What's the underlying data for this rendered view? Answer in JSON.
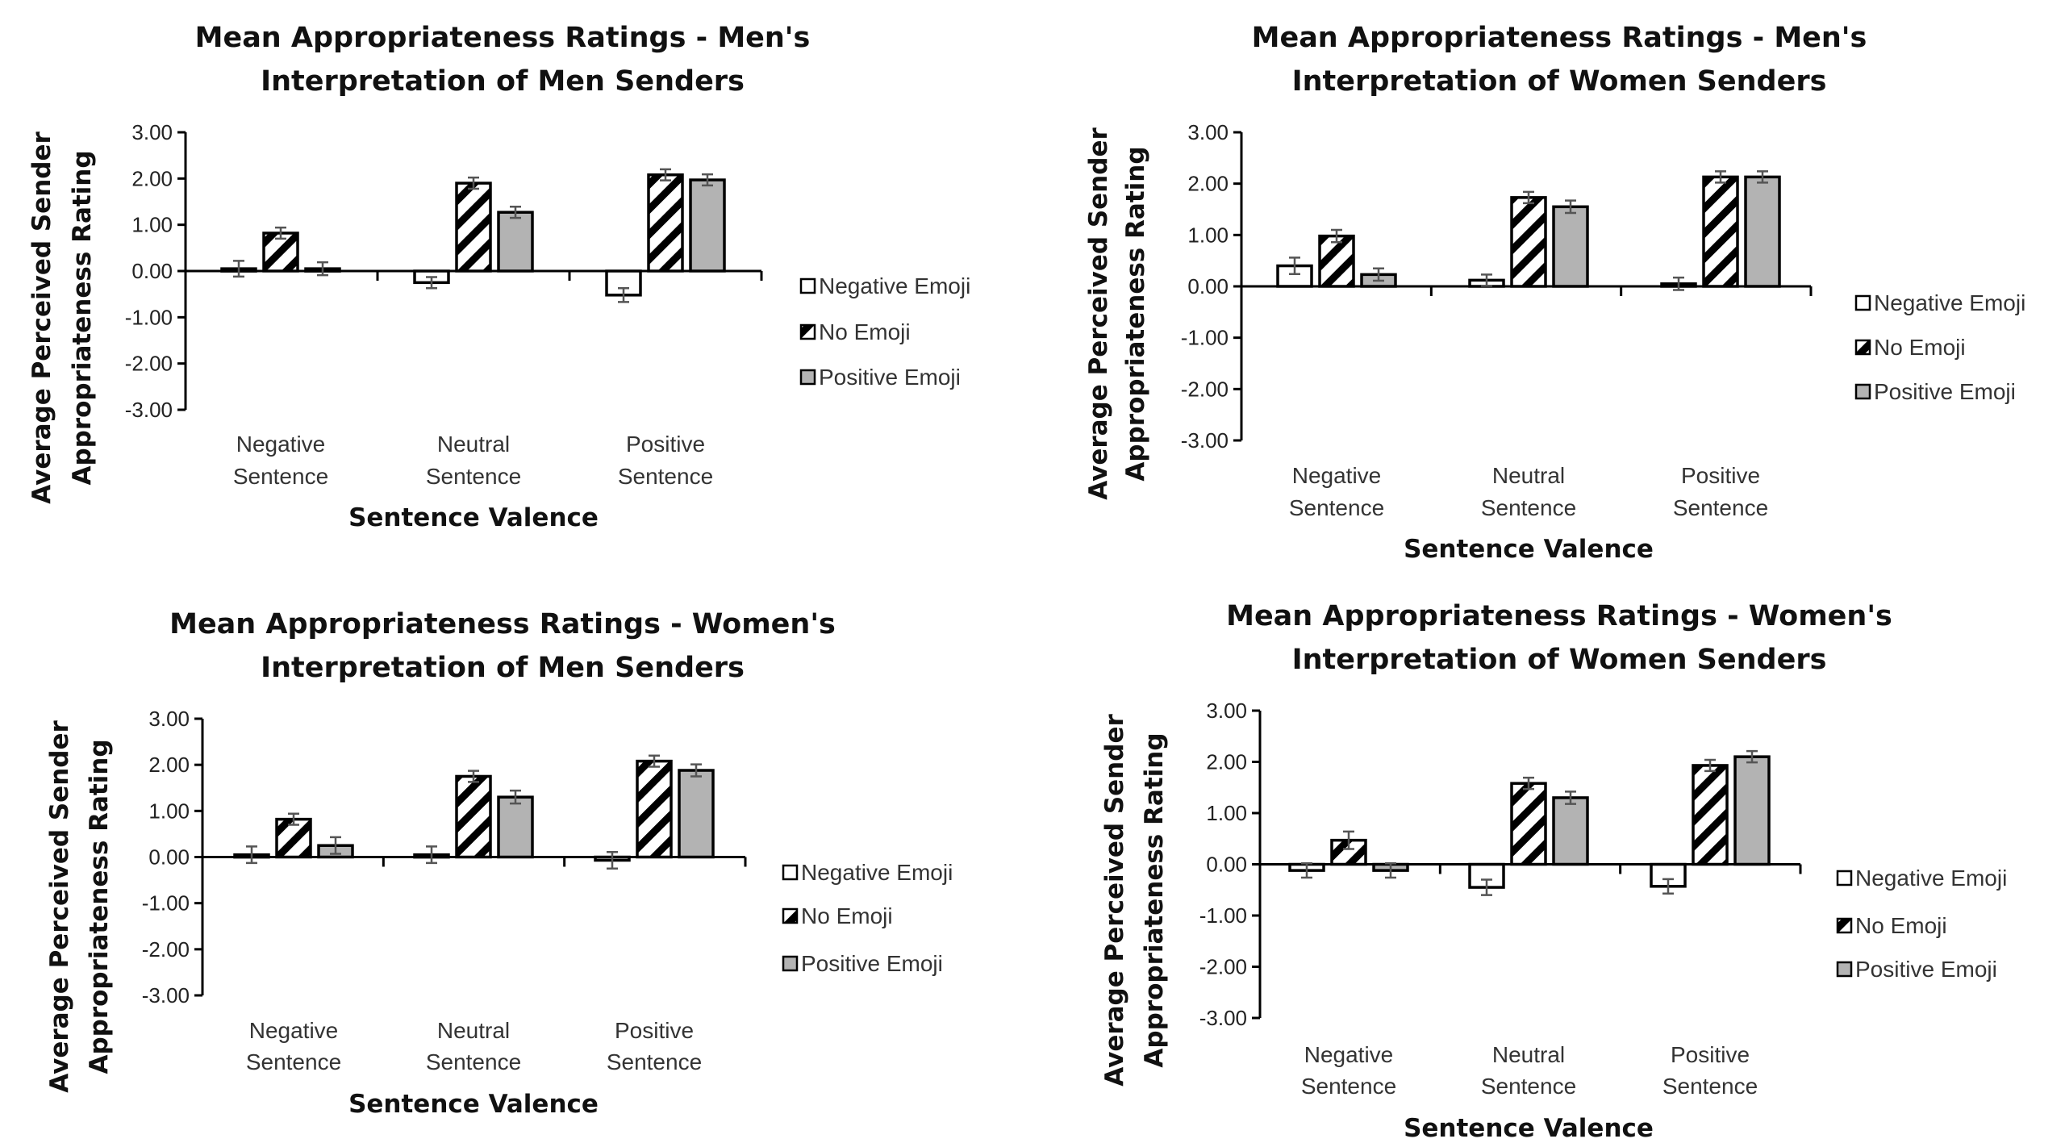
{
  "chart_data": [
    {
      "type": "bar",
      "title": [
        "Mean Appropriateness Ratings - Men's",
        "Interpretation of Men Senders"
      ],
      "xlabel": "Sentence Valence",
      "ylabel": [
        "Average Perceived Sender",
        "Appropriateness Rating"
      ],
      "categories": [
        [
          "Negative",
          "Sentence"
        ],
        [
          "Neutral",
          "Sentence"
        ],
        [
          "Positive",
          "Sentence"
        ]
      ],
      "ylim": [
        -3,
        3
      ],
      "yticks": [
        "3.00",
        "2.00",
        "1.00",
        "0.00",
        "-1.00",
        "-2.00",
        "-3.00"
      ],
      "legend_position": "right",
      "series": [
        {
          "name": "Negative Emoji",
          "values": [
            0.05,
            -0.25,
            -0.52
          ],
          "error": [
            0.17,
            0.12,
            0.15
          ]
        },
        {
          "name": "No Emoji",
          "values": [
            0.82,
            1.9,
            2.08
          ],
          "error": [
            0.12,
            0.12,
            0.12
          ]
        },
        {
          "name": "Positive Emoji",
          "values": [
            0.05,
            1.27,
            1.97
          ],
          "error": [
            0.14,
            0.12,
            0.12
          ]
        }
      ]
    },
    {
      "type": "bar",
      "title": [
        "Mean Appropriateness Ratings - Men's",
        "Interpretation of Women Senders"
      ],
      "xlabel": "Sentence Valence",
      "ylabel": [
        "Average Perceived Sender",
        "Appropriateness Rating"
      ],
      "categories": [
        [
          "Negative",
          "Sentence"
        ],
        [
          "Neutral",
          "Sentence"
        ],
        [
          "Positive",
          "Sentence"
        ]
      ],
      "ylim": [
        -3,
        3
      ],
      "yticks": [
        "3.00",
        "2.00",
        "1.00",
        "0.00",
        "-1.00",
        "-2.00",
        "-3.00"
      ],
      "legend_position": "right",
      "series": [
        {
          "name": "Negative Emoji",
          "values": [
            0.4,
            0.12,
            0.05
          ],
          "error": [
            0.16,
            0.11,
            0.12
          ]
        },
        {
          "name": "No Emoji",
          "values": [
            0.98,
            1.73,
            2.13
          ],
          "error": [
            0.12,
            0.11,
            0.11
          ]
        },
        {
          "name": "Positive Emoji",
          "values": [
            0.23,
            1.55,
            2.13
          ],
          "error": [
            0.12,
            0.12,
            0.11
          ]
        }
      ]
    },
    {
      "type": "bar",
      "title": [
        "Mean Appropriateness Ratings - Women's",
        "Interpretation of Men Senders"
      ],
      "xlabel": "Sentence Valence",
      "ylabel": [
        "Average Perceived Sender",
        "Appropriateness Rating"
      ],
      "categories": [
        [
          "Negative",
          "Sentence"
        ],
        [
          "Neutral",
          "Sentence"
        ],
        [
          "Positive",
          "Sentence"
        ]
      ],
      "ylim": [
        -3,
        3
      ],
      "yticks": [
        "3.00",
        "2.00",
        "1.00",
        "0.00",
        "-1.00",
        "-2.00",
        "-3.00"
      ],
      "legend_position": "right",
      "series": [
        {
          "name": "Negative Emoji",
          "values": [
            0.05,
            0.05,
            -0.07
          ],
          "error": [
            0.18,
            0.18,
            0.18
          ]
        },
        {
          "name": "No Emoji",
          "values": [
            0.82,
            1.75,
            2.08
          ],
          "error": [
            0.12,
            0.12,
            0.12
          ]
        },
        {
          "name": "Positive Emoji",
          "values": [
            0.25,
            1.3,
            1.88
          ],
          "error": [
            0.18,
            0.14,
            0.13
          ]
        }
      ]
    },
    {
      "type": "bar",
      "title": [
        "Mean Appropriateness Ratings - Women's",
        "Interpretation of Women Senders"
      ],
      "xlabel": "Sentence Valence",
      "ylabel": [
        "Average Perceived Sender",
        "Appropriateness Rating"
      ],
      "categories": [
        [
          "Negative",
          "Sentence"
        ],
        [
          "Neutral",
          "Sentence"
        ],
        [
          "Positive",
          "Sentence"
        ]
      ],
      "ylim": [
        -3,
        3
      ],
      "yticks": [
        "3.00",
        "2.00",
        "1.00",
        "0.00",
        "-1.00",
        "-2.00",
        "-3.00"
      ],
      "legend_position": "right",
      "series": [
        {
          "name": "Negative Emoji",
          "values": [
            -0.12,
            -0.45,
            -0.43
          ],
          "error": [
            0.14,
            0.15,
            0.14
          ]
        },
        {
          "name": "No Emoji",
          "values": [
            0.47,
            1.58,
            1.93
          ],
          "error": [
            0.17,
            0.11,
            0.11
          ]
        },
        {
          "name": "Positive Emoji",
          "values": [
            -0.12,
            1.3,
            2.1
          ],
          "error": [
            0.14,
            0.12,
            0.11
          ]
        }
      ]
    }
  ],
  "colors": {
    "negative_emoji_fill": "#ffffff",
    "no_emoji_pattern": "diagonal-hatch",
    "positive_emoji_fill": "#b3b3b3",
    "error_bar": "#555555",
    "axis": "#000000"
  }
}
